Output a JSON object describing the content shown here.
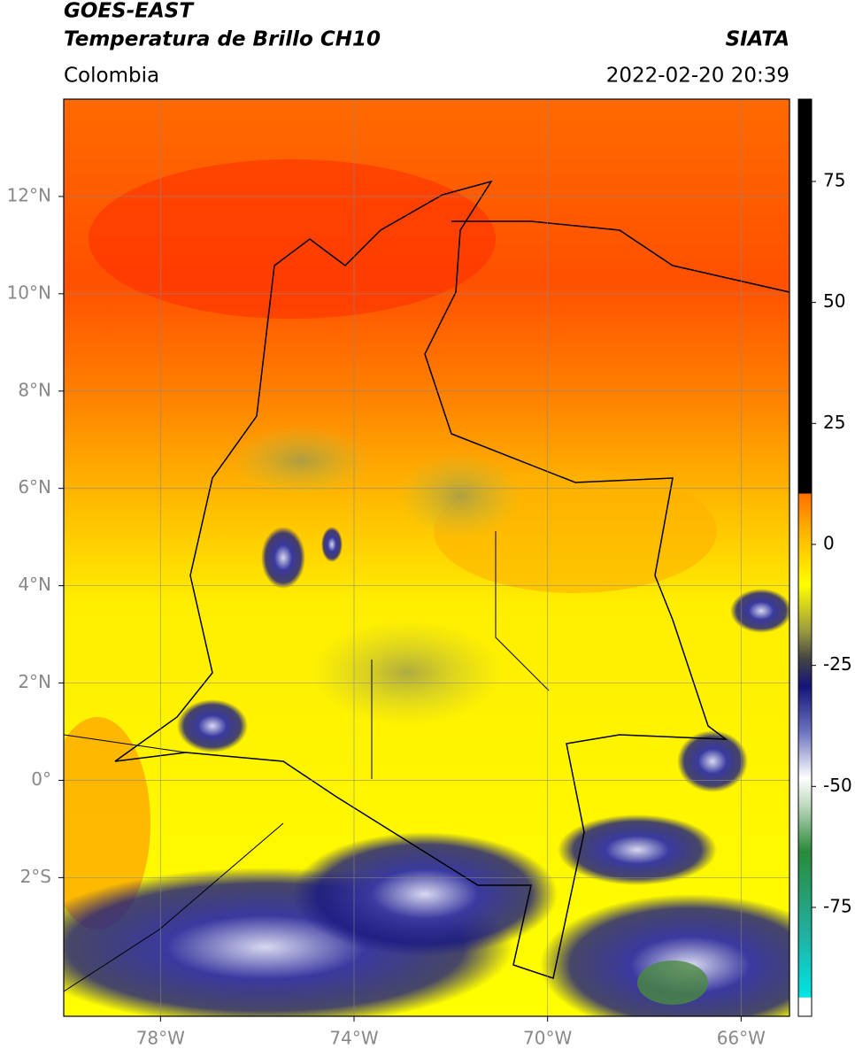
{
  "header": {
    "title_line1": "GOES-EAST",
    "title_line2": "Temperatura de Brillo CH10",
    "region": "Colombia",
    "source": "SIATA",
    "datetime": "2022-02-20 20:39"
  },
  "map": {
    "lonlim": [
      -80,
      -65
    ],
    "latlim": [
      -4.85,
      14
    ],
    "lonticks": [
      {
        "value": -78,
        "label": "78°W"
      },
      {
        "value": -74,
        "label": "74°W"
      },
      {
        "value": -70,
        "label": "70°W"
      },
      {
        "value": -66,
        "label": "66°W"
      }
    ],
    "latticks": [
      {
        "value": 12,
        "label": "12°N"
      },
      {
        "value": 10,
        "label": "10°N"
      },
      {
        "value": 8,
        "label": "8°N"
      },
      {
        "value": 6,
        "label": "6°N"
      },
      {
        "value": 4,
        "label": "4°N"
      },
      {
        "value": 2,
        "label": "2°N"
      },
      {
        "value": 0,
        "label": "0°"
      },
      {
        "value": -2,
        "label": "2°S"
      }
    ]
  },
  "colorbar": {
    "lim": [
      -97.5,
      92
    ],
    "ticks": [
      75,
      50,
      25,
      0,
      -25,
      -50,
      -75
    ]
  }
}
